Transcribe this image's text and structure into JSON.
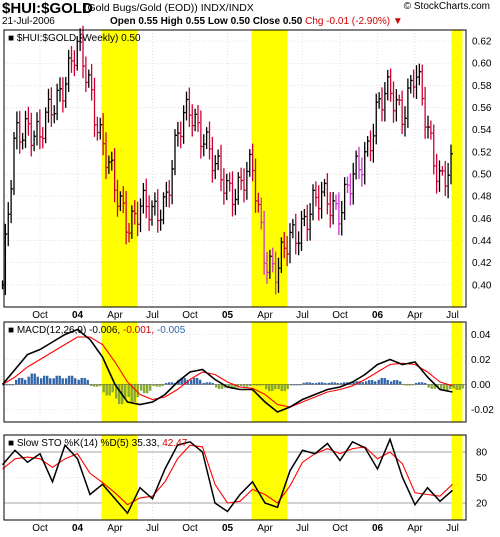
{
  "header": {
    "symbol": "$HUI:$GOLD",
    "description": "(Gold Bugs/Gold (EOD)) INDX/INDX",
    "date": "21-Jul-2006",
    "ohlc": "Open 0.55 High 0.55 Low 0.50 Close 0.50",
    "chg": "Chg -0.01 (-2.90%)",
    "credit": "© StockCharts.com"
  },
  "colors": {
    "highlight": "#ffff00",
    "up_bar": "#000000",
    "down_bar": "#cc0033",
    "alt_bar": "#cc33cc",
    "macd_line": "#000000",
    "signal_line": "#ff0000",
    "histogram": "#3366aa",
    "histogram_neg": "#88aa33",
    "stoch_k": "#000000",
    "stoch_d": "#ff0000",
    "stoch_k_highlight": "#0000ff"
  },
  "panels": {
    "price": {
      "legend": "$HUI:$GOLD (Weekly) 0.50"
    },
    "macd": {
      "legend_main": "MACD(12,26,9)",
      "v1": "-0.006,",
      "v2": "-0.001,",
      "v3": "-0.005"
    },
    "sto": {
      "legend_main": "Slow STO %K(14) %D(5)",
      "v1": "35.33,",
      "v2": "42.47"
    }
  },
  "chart_data": [
    {
      "type": "ohlc",
      "title": "$HUI:$GOLD (Weekly) 0.50",
      "x_tick_labels": [
        "Oct",
        "04",
        "Apr",
        "Jul",
        "Oct",
        "05",
        "Apr",
        "Jul",
        "Oct",
        "06",
        "Apr",
        "Jul"
      ],
      "ylim": [
        0.38,
        0.63
      ],
      "y_ticks": [
        0.4,
        0.42,
        0.44,
        0.46,
        0.48,
        0.5,
        0.52,
        0.54,
        0.56,
        0.58,
        0.6,
        0.62
      ],
      "highlight_ranges": [
        [
          "Mar 2004",
          "May 2004"
        ],
        [
          "Mar 2005",
          "May 2005"
        ],
        [
          "Jul 2006",
          "Jul 2006"
        ]
      ],
      "close_path": [
        {
          "x": "Jul 2003",
          "y": 0.4
        },
        {
          "x": "Aug 2003",
          "y": 0.53
        },
        {
          "x": "Sep 2003",
          "y": 0.55
        },
        {
          "x": "Oct 2003",
          "y": 0.53
        },
        {
          "x": "Nov 2003",
          "y": 0.56
        },
        {
          "x": "Dec 2003",
          "y": 0.59
        },
        {
          "x": "Jan 2004",
          "y": 0.61
        },
        {
          "x": "Feb 2004",
          "y": 0.58
        },
        {
          "x": "Mar 2004",
          "y": 0.53
        },
        {
          "x": "Apr 2004",
          "y": 0.48
        },
        {
          "x": "May 2004",
          "y": 0.46
        },
        {
          "x": "Jun 2004",
          "y": 0.47
        },
        {
          "x": "Jul 2004",
          "y": 0.46
        },
        {
          "x": "Aug 2004",
          "y": 0.48
        },
        {
          "x": "Sep 2004",
          "y": 0.53
        },
        {
          "x": "Oct 2004",
          "y": 0.56
        },
        {
          "x": "Nov 2004",
          "y": 0.54
        },
        {
          "x": "Dec 2004",
          "y": 0.5
        },
        {
          "x": "Jan 2005",
          "y": 0.49
        },
        {
          "x": "Feb 2005",
          "y": 0.49
        },
        {
          "x": "Mar 2005",
          "y": 0.5
        },
        {
          "x": "Apr 2005",
          "y": 0.43
        },
        {
          "x": "May 2005",
          "y": 0.41
        },
        {
          "x": "Jun 2005",
          "y": 0.44
        },
        {
          "x": "Jul 2005",
          "y": 0.46
        },
        {
          "x": "Aug 2005",
          "y": 0.47
        },
        {
          "x": "Sep 2005",
          "y": 0.48
        },
        {
          "x": "Oct 2005",
          "y": 0.47
        },
        {
          "x": "Nov 2005",
          "y": 0.49
        },
        {
          "x": "Dec 2005",
          "y": 0.52
        },
        {
          "x": "Jan 2006",
          "y": 0.56
        },
        {
          "x": "Feb 2006",
          "y": 0.57
        },
        {
          "x": "Mar 2006",
          "y": 0.56
        },
        {
          "x": "Apr 2006",
          "y": 0.59
        },
        {
          "x": "May 2006",
          "y": 0.54
        },
        {
          "x": "Jun 2006",
          "y": 0.5
        },
        {
          "x": "Jul 2006",
          "y": 0.5
        }
      ]
    },
    {
      "type": "line",
      "title": "MACD(12,26,9) -0.006, -0.001, -0.005",
      "x_tick_labels": [
        "Oct",
        "04",
        "Apr",
        "Jul",
        "Oct",
        "05",
        "Apr",
        "Jul",
        "Oct",
        "06",
        "Apr",
        "Jul"
      ],
      "ylim": [
        -0.03,
        0.05
      ],
      "y_ticks": [
        -0.02,
        0.0,
        0.02,
        0.04
      ],
      "series": [
        {
          "name": "MACD",
          "points": [
            {
              "x": "Jul 2003",
              "y": 0.0
            },
            {
              "x": "Aug 2003",
              "y": 0.012
            },
            {
              "x": "Sep 2003",
              "y": 0.024
            },
            {
              "x": "Oct 2003",
              "y": 0.028
            },
            {
              "x": "Nov 2003",
              "y": 0.034
            },
            {
              "x": "Dec 2003",
              "y": 0.04
            },
            {
              "x": "Jan 2004",
              "y": 0.044
            },
            {
              "x": "Feb 2004",
              "y": 0.036
            },
            {
              "x": "Mar 2004",
              "y": 0.022
            },
            {
              "x": "Apr 2004",
              "y": 0.0
            },
            {
              "x": "May 2004",
              "y": -0.014
            },
            {
              "x": "Jun 2004",
              "y": -0.016
            },
            {
              "x": "Jul 2004",
              "y": -0.014
            },
            {
              "x": "Aug 2004",
              "y": -0.008
            },
            {
              "x": "Sep 2004",
              "y": 0.002
            },
            {
              "x": "Oct 2004",
              "y": 0.01
            },
            {
              "x": "Nov 2004",
              "y": 0.012
            },
            {
              "x": "Dec 2004",
              "y": 0.004
            },
            {
              "x": "Jan 2005",
              "y": -0.002
            },
            {
              "x": "Feb 2005",
              "y": -0.004
            },
            {
              "x": "Mar 2005",
              "y": -0.004
            },
            {
              "x": "Apr 2005",
              "y": -0.014
            },
            {
              "x": "May 2005",
              "y": -0.022
            },
            {
              "x": "Jun 2005",
              "y": -0.018
            },
            {
              "x": "Jul 2005",
              "y": -0.012
            },
            {
              "x": "Aug 2005",
              "y": -0.008
            },
            {
              "x": "Sep 2005",
              "y": -0.004
            },
            {
              "x": "Oct 2005",
              "y": -0.002
            },
            {
              "x": "Nov 2005",
              "y": 0.002
            },
            {
              "x": "Dec 2005",
              "y": 0.008
            },
            {
              "x": "Jan 2006",
              "y": 0.016
            },
            {
              "x": "Feb 2006",
              "y": 0.02
            },
            {
              "x": "Mar 2006",
              "y": 0.016
            },
            {
              "x": "Apr 2006",
              "y": 0.018
            },
            {
              "x": "May 2006",
              "y": 0.006
            },
            {
              "x": "Jun 2006",
              "y": -0.004
            },
            {
              "x": "Jul 2006",
              "y": -0.006
            }
          ]
        },
        {
          "name": "Signal",
          "points": [
            {
              "x": "Jul 2003",
              "y": 0.0
            },
            {
              "x": "Aug 2003",
              "y": 0.006
            },
            {
              "x": "Sep 2003",
              "y": 0.014
            },
            {
              "x": "Oct 2003",
              "y": 0.02
            },
            {
              "x": "Nov 2003",
              "y": 0.026
            },
            {
              "x": "Dec 2003",
              "y": 0.032
            },
            {
              "x": "Jan 2004",
              "y": 0.038
            },
            {
              "x": "Feb 2004",
              "y": 0.038
            },
            {
              "x": "Mar 2004",
              "y": 0.032
            },
            {
              "x": "Apr 2004",
              "y": 0.018
            },
            {
              "x": "May 2004",
              "y": 0.002
            },
            {
              "x": "Jun 2004",
              "y": -0.008
            },
            {
              "x": "Jul 2004",
              "y": -0.012
            },
            {
              "x": "Aug 2004",
              "y": -0.01
            },
            {
              "x": "Sep 2004",
              "y": -0.004
            },
            {
              "x": "Oct 2004",
              "y": 0.004
            },
            {
              "x": "Nov 2004",
              "y": 0.01
            },
            {
              "x": "Dec 2004",
              "y": 0.008
            },
            {
              "x": "Jan 2005",
              "y": 0.002
            },
            {
              "x": "Feb 2005",
              "y": -0.002
            },
            {
              "x": "Mar 2005",
              "y": -0.003
            },
            {
              "x": "Apr 2005",
              "y": -0.008
            },
            {
              "x": "May 2005",
              "y": -0.016
            },
            {
              "x": "Jun 2005",
              "y": -0.018
            },
            {
              "x": "Jul 2005",
              "y": -0.014
            },
            {
              "x": "Aug 2005",
              "y": -0.01
            },
            {
              "x": "Sep 2005",
              "y": -0.006
            },
            {
              "x": "Oct 2005",
              "y": -0.004
            },
            {
              "x": "Nov 2005",
              "y": -0.001
            },
            {
              "x": "Dec 2005",
              "y": 0.004
            },
            {
              "x": "Jan 2006",
              "y": 0.01
            },
            {
              "x": "Feb 2006",
              "y": 0.016
            },
            {
              "x": "Mar 2006",
              "y": 0.017
            },
            {
              "x": "Apr 2006",
              "y": 0.016
            },
            {
              "x": "May 2006",
              "y": 0.01
            },
            {
              "x": "Jun 2006",
              "y": 0.002
            },
            {
              "x": "Jul 2006",
              "y": -0.001
            }
          ]
        }
      ]
    },
    {
      "type": "line",
      "title": "Slow STO %K(14) %D(5) 35.33, 42.47",
      "x_tick_labels": [
        "Oct",
        "04",
        "Apr",
        "Jul",
        "Oct",
        "05",
        "Apr",
        "Jul",
        "Oct",
        "06",
        "Apr",
        "Jul"
      ],
      "ylim": [
        0,
        100
      ],
      "y_ticks": [
        20,
        50,
        80
      ],
      "series": [
        {
          "name": "%K",
          "points": [
            {
              "x": "Jul 2003",
              "y": 65
            },
            {
              "x": "Aug 2003",
              "y": 82
            },
            {
              "x": "Sep 2003",
              "y": 68
            },
            {
              "x": "Oct 2003",
              "y": 78
            },
            {
              "x": "Nov 2003",
              "y": 45
            },
            {
              "x": "Dec 2003",
              "y": 88
            },
            {
              "x": "Jan 2004",
              "y": 72
            },
            {
              "x": "Feb 2004",
              "y": 30
            },
            {
              "x": "Mar 2004",
              "y": 42
            },
            {
              "x": "Apr 2004",
              "y": 25
            },
            {
              "x": "May 2004",
              "y": 8
            },
            {
              "x": "Jun 2004",
              "y": 38
            },
            {
              "x": "Jul 2004",
              "y": 25
            },
            {
              "x": "Aug 2004",
              "y": 60
            },
            {
              "x": "Sep 2004",
              "y": 88
            },
            {
              "x": "Oct 2004",
              "y": 92
            },
            {
              "x": "Nov 2004",
              "y": 80
            },
            {
              "x": "Dec 2004",
              "y": 20
            },
            {
              "x": "Jan 2005",
              "y": 10
            },
            {
              "x": "Feb 2005",
              "y": 30
            },
            {
              "x": "Mar 2005",
              "y": 45
            },
            {
              "x": "Apr 2005",
              "y": 20
            },
            {
              "x": "May 2005",
              "y": 15
            },
            {
              "x": "Jun 2005",
              "y": 58
            },
            {
              "x": "Jul 2005",
              "y": 82
            },
            {
              "x": "Aug 2005",
              "y": 78
            },
            {
              "x": "Sep 2005",
              "y": 90
            },
            {
              "x": "Oct 2005",
              "y": 70
            },
            {
              "x": "Nov 2005",
              "y": 92
            },
            {
              "x": "Dec 2005",
              "y": 85
            },
            {
              "x": "Jan 2006",
              "y": 60
            },
            {
              "x": "Feb 2006",
              "y": 95
            },
            {
              "x": "Mar 2006",
              "y": 50
            },
            {
              "x": "Apr 2006",
              "y": 18
            },
            {
              "x": "May 2006",
              "y": 38
            },
            {
              "x": "Jun 2006",
              "y": 22
            },
            {
              "x": "Jul 2006",
              "y": 35
            }
          ]
        },
        {
          "name": "%D",
          "points": [
            {
              "x": "Jul 2003",
              "y": 60
            },
            {
              "x": "Aug 2003",
              "y": 72
            },
            {
              "x": "Sep 2003",
              "y": 74
            },
            {
              "x": "Oct 2003",
              "y": 72
            },
            {
              "x": "Nov 2003",
              "y": 62
            },
            {
              "x": "Dec 2003",
              "y": 72
            },
            {
              "x": "Jan 2004",
              "y": 78
            },
            {
              "x": "Feb 2004",
              "y": 55
            },
            {
              "x": "Mar 2004",
              "y": 44
            },
            {
              "x": "Apr 2004",
              "y": 32
            },
            {
              "x": "May 2004",
              "y": 18
            },
            {
              "x": "Jun 2004",
              "y": 26
            },
            {
              "x": "Jul 2004",
              "y": 28
            },
            {
              "x": "Aug 2004",
              "y": 45
            },
            {
              "x": "Sep 2004",
              "y": 72
            },
            {
              "x": "Oct 2004",
              "y": 88
            },
            {
              "x": "Nov 2004",
              "y": 86
            },
            {
              "x": "Dec 2004",
              "y": 42
            },
            {
              "x": "Jan 2005",
              "y": 20
            },
            {
              "x": "Feb 2005",
              "y": 22
            },
            {
              "x": "Mar 2005",
              "y": 36
            },
            {
              "x": "Apr 2005",
              "y": 30
            },
            {
              "x": "May 2005",
              "y": 20
            },
            {
              "x": "Jun 2005",
              "y": 40
            },
            {
              "x": "Jul 2005",
              "y": 68
            },
            {
              "x": "Aug 2005",
              "y": 78
            },
            {
              "x": "Sep 2005",
              "y": 84
            },
            {
              "x": "Oct 2005",
              "y": 78
            },
            {
              "x": "Nov 2005",
              "y": 84
            },
            {
              "x": "Dec 2005",
              "y": 86
            },
            {
              "x": "Jan 2006",
              "y": 72
            },
            {
              "x": "Feb 2006",
              "y": 80
            },
            {
              "x": "Mar 2006",
              "y": 66
            },
            {
              "x": "Apr 2006",
              "y": 32
            },
            {
              "x": "May 2006",
              "y": 30
            },
            {
              "x": "Jun 2006",
              "y": 28
            },
            {
              "x": "Jul 2006",
              "y": 42
            }
          ]
        }
      ]
    }
  ]
}
